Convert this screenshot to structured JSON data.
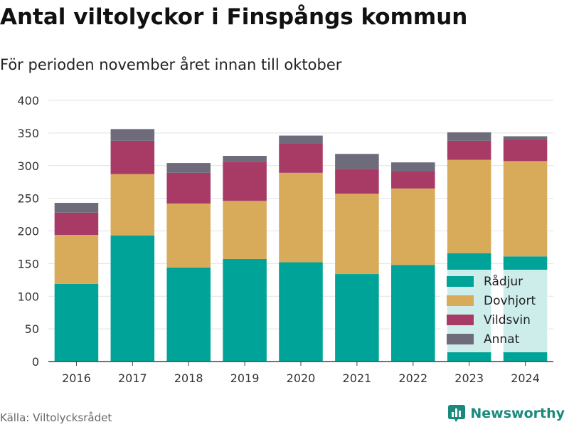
{
  "title": "Antal viltolyckor i Finspångs kommun",
  "subtitle": "För perioden november året innan till oktober",
  "source": "Källa: Viltolycksrådet",
  "brand": "Newsworthy",
  "chart_data": {
    "type": "bar",
    "stacked": true,
    "categories": [
      "2016",
      "2017",
      "2018",
      "2019",
      "2020",
      "2021",
      "2022",
      "2023",
      "2024"
    ],
    "series": [
      {
        "name": "Rådjur",
        "color": "#00a398",
        "values": [
          119,
          193,
          144,
          157,
          152,
          134,
          148,
          166,
          161
        ]
      },
      {
        "name": "Dovhjort",
        "color": "#d8ab5a",
        "values": [
          75,
          94,
          98,
          89,
          137,
          123,
          117,
          143,
          146
        ]
      },
      {
        "name": "Vildsvin",
        "color": "#a83b66",
        "values": [
          34,
          51,
          47,
          60,
          45,
          38,
          26,
          29,
          33
        ]
      },
      {
        "name": "Annat",
        "color": "#6e6c7a",
        "values": [
          15,
          18,
          15,
          9,
          12,
          23,
          14,
          13,
          5
        ]
      }
    ],
    "ylim": [
      0,
      400
    ],
    "yticks": [
      0,
      50,
      100,
      150,
      200,
      250,
      300,
      350,
      400
    ],
    "grid": true,
    "legend_position": "bottom-right"
  }
}
